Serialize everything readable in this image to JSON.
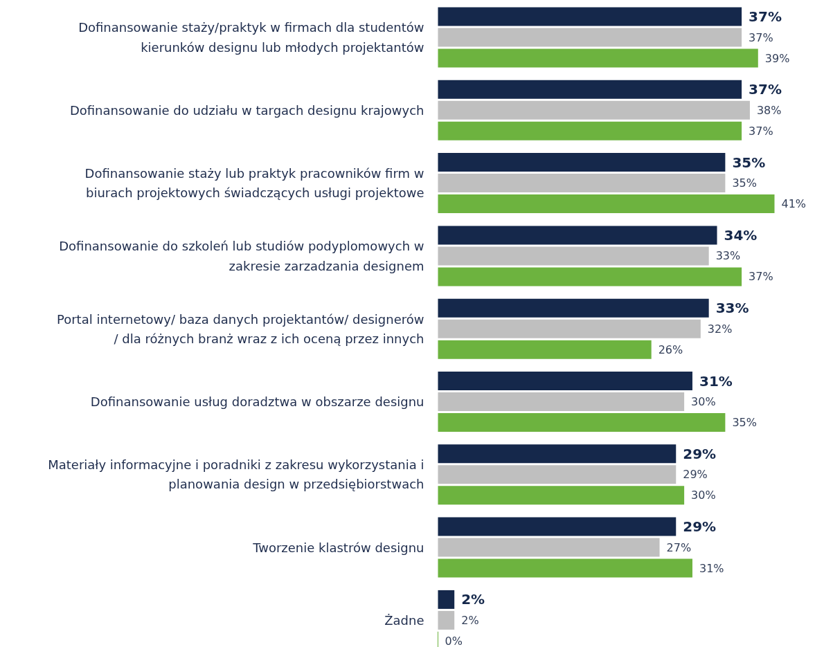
{
  "chart_data": {
    "type": "bar",
    "orientation": "horizontal",
    "categories": [
      "Dofinansowanie staży/praktyk w firmach dla studentów\nkierunków designu lub młodych projektantów",
      "Dofinansowanie do udziału w targach designu krajowych",
      "Dofinansowanie staży lub praktyk pracowników firm w\nbiurach projektowych świadczących usługi projektowe",
      "Dofinansowanie do szkoleń lub studiów podyplomowych w\nzakresie zarzadzania designem",
      "Portal internetowy/ baza danych projektantów/ designerów\n/ dla różnych branż wraz z ich oceną przez innych",
      "Dofinansowanie usług doradztwa w obszarze designu",
      "Materiały informacyjne i poradniki z zakresu wykorzystania i\nplanowania design w przedsiębiorstwach",
      "Tworzenie klastrów designu",
      "Żadne"
    ],
    "series": [
      {
        "color": "#15284b",
        "values": [
          37,
          37,
          35,
          34,
          33,
          31,
          29,
          29,
          2
        ],
        "value_labels": [
          "37%",
          "37%",
          "35%",
          "34%",
          "33%",
          "31%",
          "29%",
          "29%",
          "2%"
        ]
      },
      {
        "color": "#bfbfbf",
        "values": [
          37,
          38,
          35,
          33,
          32,
          30,
          29,
          27,
          2
        ],
        "value_labels": [
          "37%",
          "38%",
          "35%",
          "33%",
          "32%",
          "30%",
          "29%",
          "27%",
          "2%"
        ]
      },
      {
        "color": "#6db33f",
        "values": [
          39,
          37,
          41,
          37,
          26,
          35,
          30,
          31,
          0
        ],
        "value_labels": [
          "39%",
          "37%",
          "41%",
          "37%",
          "26%",
          "35%",
          "30%",
          "31%",
          "0%"
        ]
      }
    ]
  }
}
